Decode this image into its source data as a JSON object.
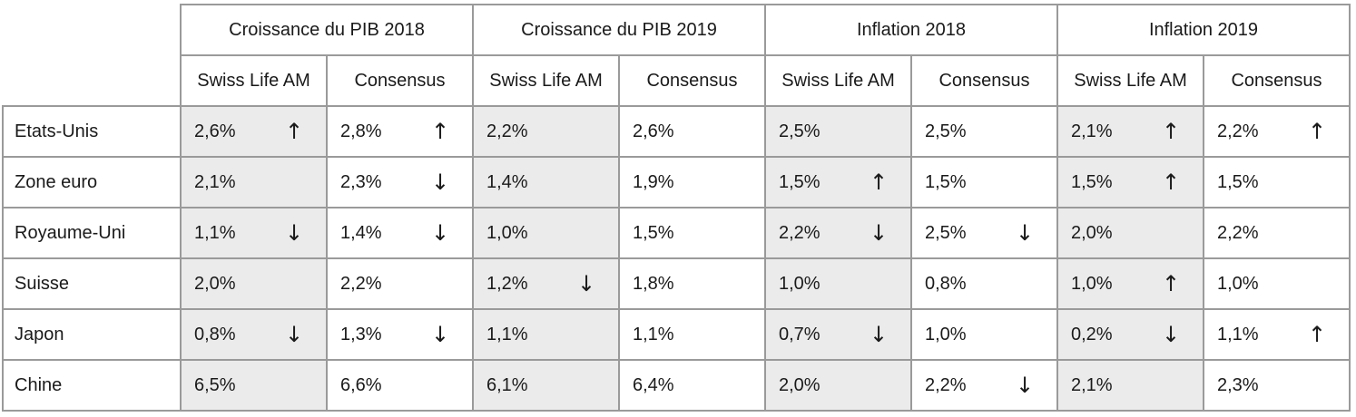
{
  "table": {
    "groups": [
      "Croissance du PIB 2018",
      "Croissance du PIB 2019",
      "Inflation 2018",
      "Inflation 2019"
    ],
    "subheaders": [
      "Swiss Life AM",
      "Consensus",
      "Swiss Life AM",
      "Consensus",
      "Swiss Life AM",
      "Consensus",
      "Swiss Life AM",
      "Consensus"
    ],
    "rows": [
      {
        "country": "Etats-Unis",
        "cells": [
          {
            "v": "2,6%",
            "a": "↑"
          },
          {
            "v": "2,8%",
            "a": "↑"
          },
          {
            "v": "2,2%",
            "a": ""
          },
          {
            "v": "2,6%",
            "a": ""
          },
          {
            "v": "2,5%",
            "a": ""
          },
          {
            "v": "2,5%",
            "a": ""
          },
          {
            "v": "2,1%",
            "a": "↑"
          },
          {
            "v": "2,2%",
            "a": "↑"
          }
        ]
      },
      {
        "country": "Zone euro",
        "cells": [
          {
            "v": "2,1%",
            "a": ""
          },
          {
            "v": "2,3%",
            "a": "↓"
          },
          {
            "v": "1,4%",
            "a": ""
          },
          {
            "v": "1,9%",
            "a": ""
          },
          {
            "v": "1,5%",
            "a": "↑"
          },
          {
            "v": "1,5%",
            "a": ""
          },
          {
            "v": "1,5%",
            "a": "↑"
          },
          {
            "v": "1,5%",
            "a": ""
          }
        ]
      },
      {
        "country": "Royaume-Uni",
        "cells": [
          {
            "v": "1,1%",
            "a": "↓"
          },
          {
            "v": "1,4%",
            "a": "↓"
          },
          {
            "v": "1,0%",
            "a": ""
          },
          {
            "v": "1,5%",
            "a": ""
          },
          {
            "v": "2,2%",
            "a": "↓"
          },
          {
            "v": "2,5%",
            "a": "↓"
          },
          {
            "v": "2,0%",
            "a": ""
          },
          {
            "v": "2,2%",
            "a": ""
          }
        ]
      },
      {
        "country": "Suisse",
        "cells": [
          {
            "v": "2,0%",
            "a": ""
          },
          {
            "v": "2,2%",
            "a": ""
          },
          {
            "v": "1,2%",
            "a": "↓"
          },
          {
            "v": "1,8%",
            "a": ""
          },
          {
            "v": "1,0%",
            "a": ""
          },
          {
            "v": "0,8%",
            "a": ""
          },
          {
            "v": "1,0%",
            "a": "↑"
          },
          {
            "v": "1,0%",
            "a": ""
          }
        ]
      },
      {
        "country": "Japon",
        "cells": [
          {
            "v": "0,8%",
            "a": "↓"
          },
          {
            "v": "1,3%",
            "a": "↓"
          },
          {
            "v": "1,1%",
            "a": ""
          },
          {
            "v": "1,1%",
            "a": ""
          },
          {
            "v": "0,7%",
            "a": "↓"
          },
          {
            "v": "1,0%",
            "a": ""
          },
          {
            "v": "0,2%",
            "a": "↓"
          },
          {
            "v": "1,1%",
            "a": "↑"
          }
        ]
      },
      {
        "country": "Chine",
        "cells": [
          {
            "v": "6,5%",
            "a": ""
          },
          {
            "v": "6,6%",
            "a": ""
          },
          {
            "v": "6,1%",
            "a": ""
          },
          {
            "v": "6,4%",
            "a": ""
          },
          {
            "v": "2,0%",
            "a": ""
          },
          {
            "v": "2,2%",
            "a": "↓"
          },
          {
            "v": "2,1%",
            "a": ""
          },
          {
            "v": "2,3%",
            "a": ""
          }
        ]
      }
    ]
  },
  "colors": {
    "swiss_life_bg": "#ebebeb",
    "consensus_bg": "#ffffff",
    "border": "#9a9a9a"
  },
  "icons": {
    "up": "arrow-up-icon",
    "down": "arrow-down-icon"
  }
}
